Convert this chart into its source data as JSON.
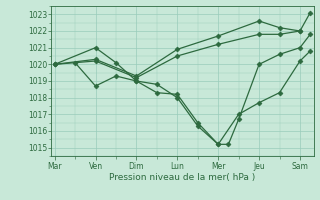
{
  "bg_color": "#c8e8d8",
  "grid_color": "#99ccbb",
  "line_color": "#2d6a3f",
  "marker_color": "#2d6a3f",
  "title": "Pression niveau de la mer( hPa )",
  "ylim": [
    1014.5,
    1023.5
  ],
  "yticks": [
    1015,
    1016,
    1017,
    1018,
    1019,
    1020,
    1021,
    1022,
    1023
  ],
  "day_labels": [
    "Mar",
    "Ven",
    "Dim",
    "Lun",
    "Mer",
    "Jeu",
    "Sam"
  ],
  "day_positions": [
    0,
    24,
    48,
    72,
    96,
    120,
    144
  ],
  "xlim": [
    -2,
    152
  ],
  "series1_x": [
    0,
    24,
    36,
    48,
    60,
    72,
    84,
    96,
    108,
    120,
    132,
    144,
    150
  ],
  "series1_y": [
    1020.0,
    1021.0,
    1020.1,
    1019.0,
    1018.8,
    1018.0,
    1016.3,
    1015.2,
    1017.0,
    1017.7,
    1018.3,
    1020.2,
    1020.8
  ],
  "series2_x": [
    0,
    24,
    48,
    72,
    96,
    120,
    132,
    144
  ],
  "series2_y": [
    1020.0,
    1020.2,
    1019.2,
    1020.5,
    1021.2,
    1021.8,
    1021.8,
    1022.0
  ],
  "series3_x": [
    0,
    24,
    48,
    72,
    96,
    120,
    132,
    144,
    150
  ],
  "series3_y": [
    1020.0,
    1020.3,
    1019.3,
    1020.9,
    1021.7,
    1022.6,
    1022.2,
    1022.0,
    1023.1
  ],
  "series4_x": [
    12,
    24,
    36,
    48,
    60,
    72,
    84,
    96,
    102,
    108,
    120,
    132,
    144,
    150
  ],
  "series4_y": [
    1020.1,
    1018.7,
    1019.3,
    1019.0,
    1018.3,
    1018.2,
    1016.5,
    1015.2,
    1015.2,
    1016.7,
    1020.0,
    1020.6,
    1021.0,
    1021.8
  ]
}
